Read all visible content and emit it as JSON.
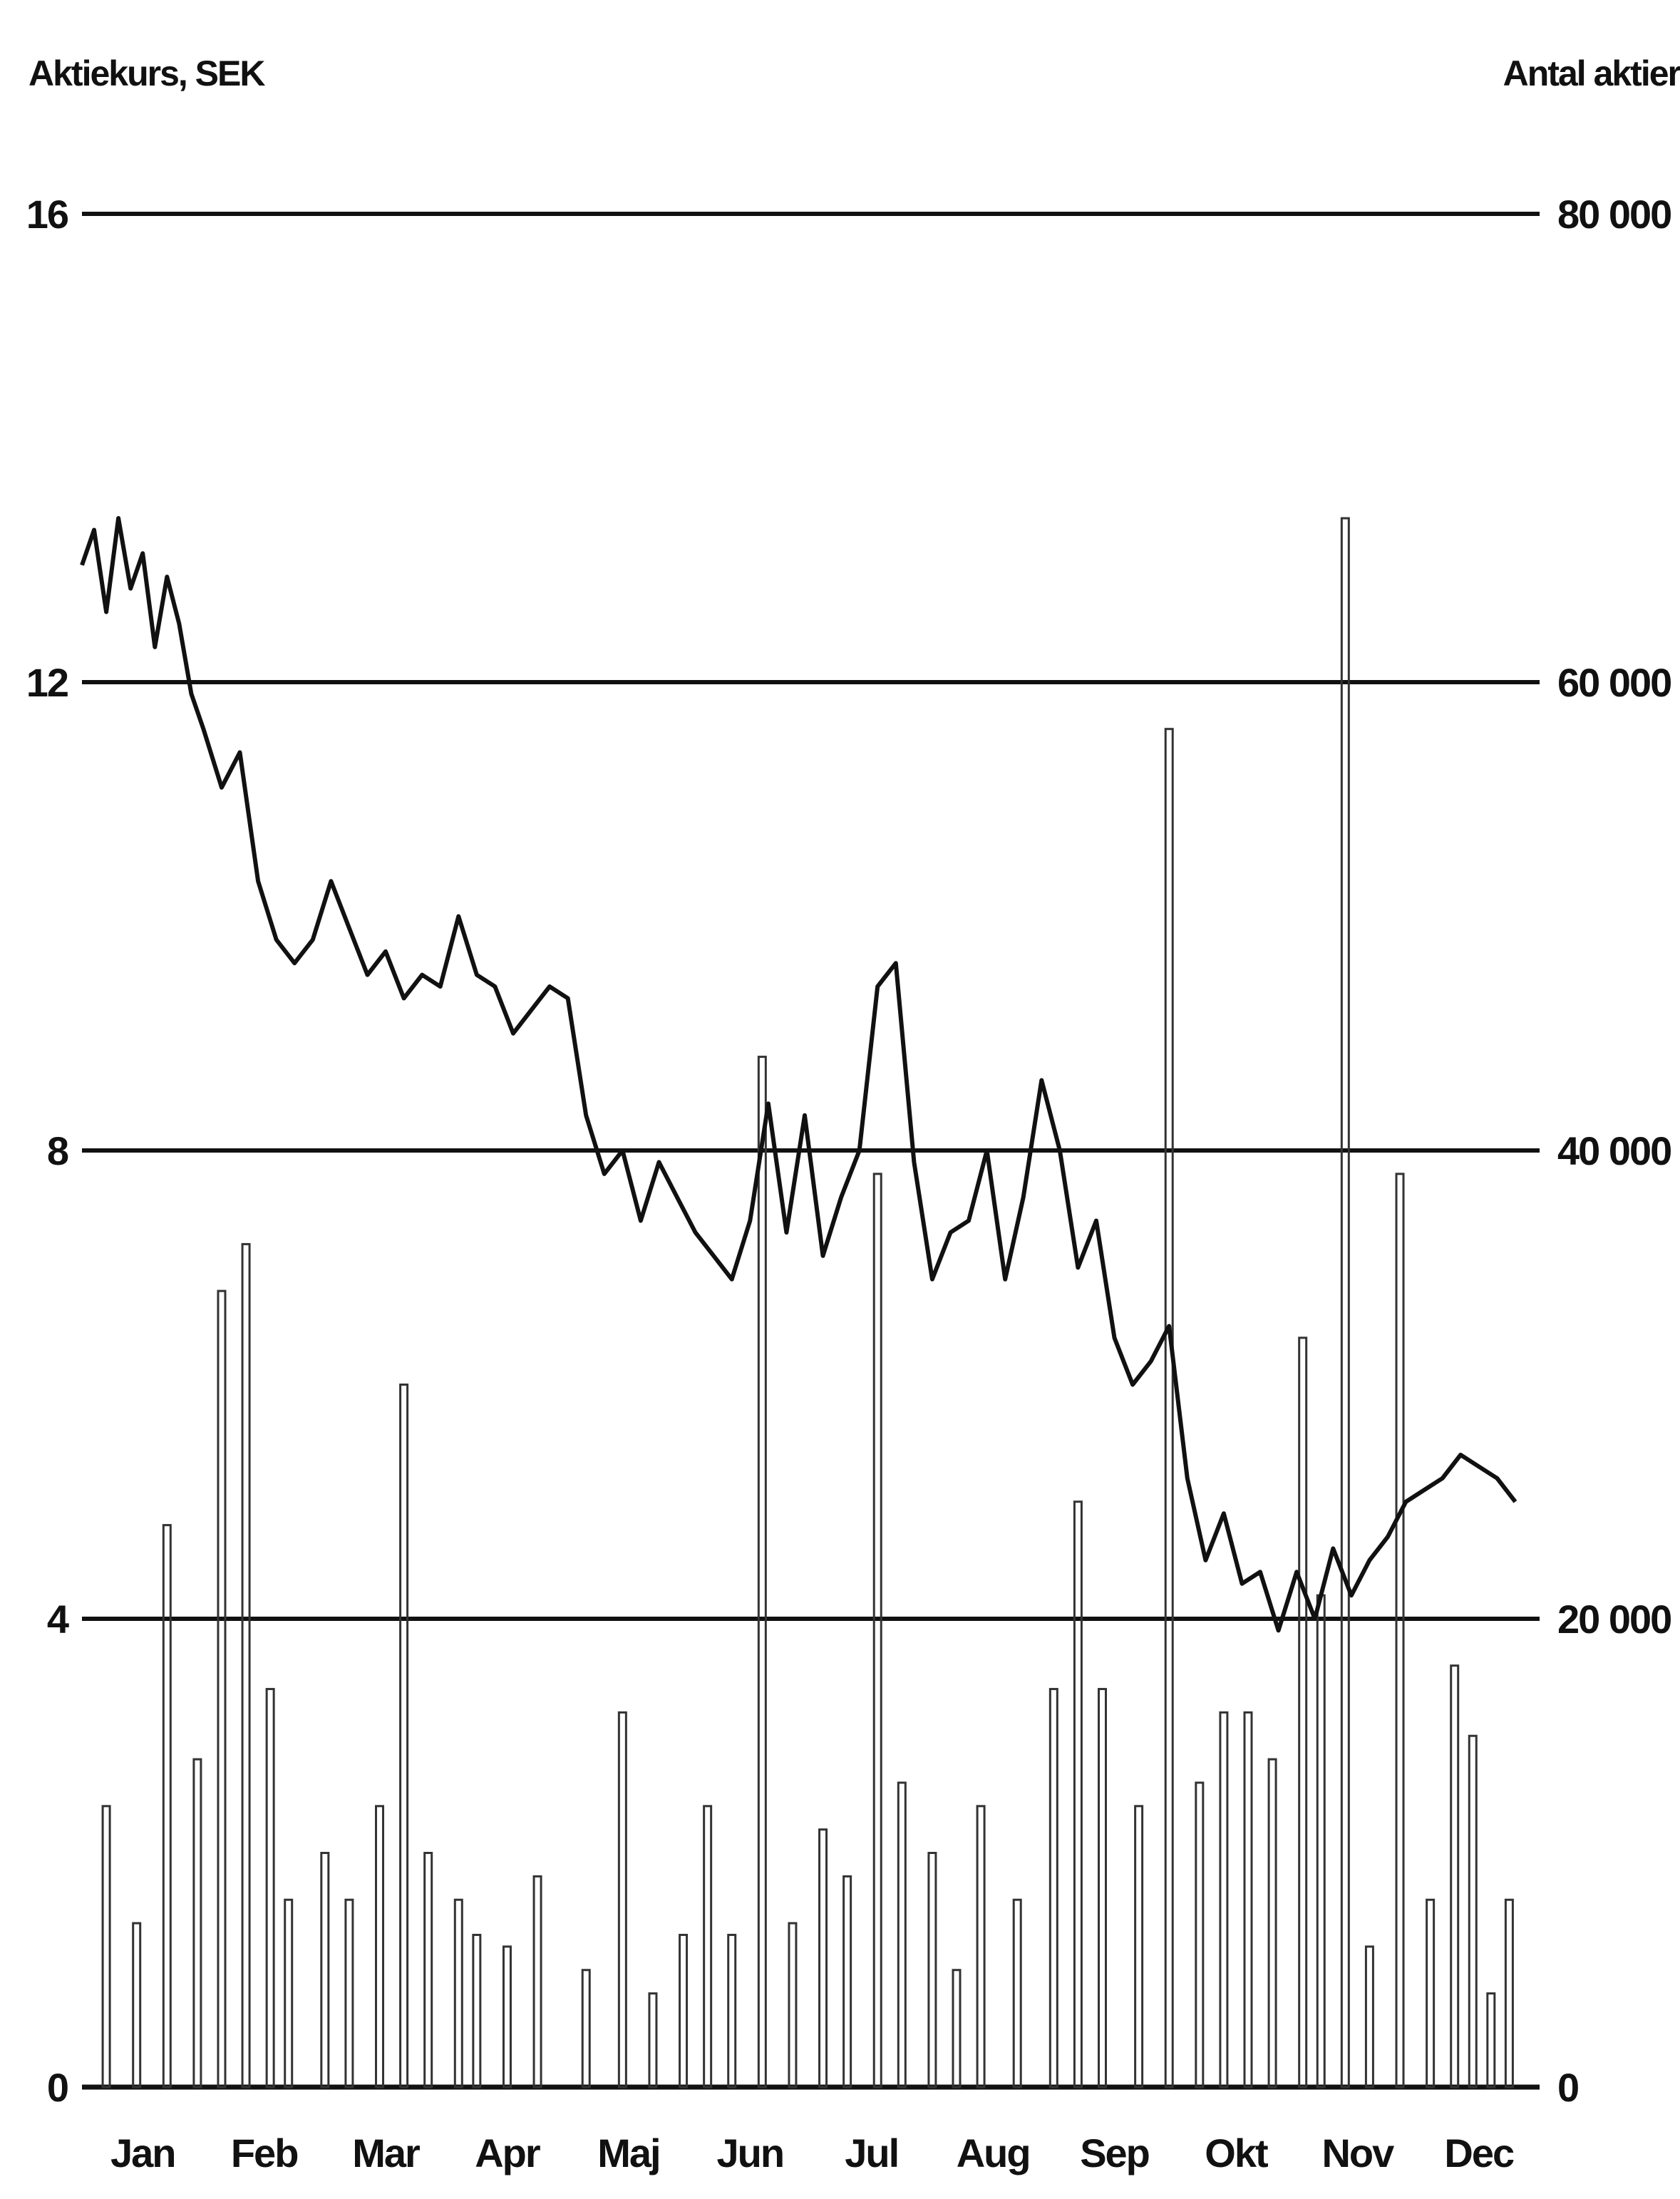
{
  "chart_data": {
    "type": "line",
    "y_left_label": "Aktiekurs, SEK",
    "y_right_label": "Antal aktier",
    "y_left_ticks": [
      "0",
      "4",
      "8",
      "12",
      "16"
    ],
    "y_right_ticks": [
      "0",
      "20 000",
      "40 000",
      "60 000",
      "80 000"
    ],
    "ylim_left": [
      0,
      16
    ],
    "ylim_right": [
      0,
      80000
    ],
    "months": [
      "Jan",
      "Feb",
      "Mar",
      "Apr",
      "Maj",
      "Jun",
      "Jul",
      "Aug",
      "Sep",
      "Okt",
      "Nov",
      "Dec"
    ],
    "grid": true,
    "colors": {
      "price": "#111111",
      "volume": "#333333",
      "grid": "#111111"
    },
    "series": [
      {
        "name": "Aktiekurs, SEK",
        "kind": "line",
        "x": [
          0.0,
          0.1,
          0.2,
          0.3,
          0.4,
          0.5,
          0.6,
          0.7,
          0.8,
          0.9,
          1.0,
          1.15,
          1.3,
          1.45,
          1.6,
          1.75,
          1.9,
          2.05,
          2.2,
          2.35,
          2.5,
          2.65,
          2.8,
          2.95,
          3.1,
          3.25,
          3.4,
          3.55,
          3.7,
          3.85,
          4.0,
          4.15,
          4.3,
          4.45,
          4.6,
          4.75,
          4.9,
          5.05,
          5.2,
          5.35,
          5.5,
          5.65,
          5.8,
          5.95,
          6.1,
          6.25,
          6.4,
          6.55,
          6.7,
          6.85,
          7.0,
          7.15,
          7.3,
          7.45,
          7.6,
          7.75,
          7.9,
          8.05,
          8.2,
          8.35,
          8.5,
          8.65,
          8.8,
          8.95,
          9.1,
          9.25,
          9.4,
          9.55,
          9.7,
          9.85,
          10.0,
          10.15,
          10.3,
          10.45,
          10.6,
          10.75,
          10.9,
          11.05,
          11.2,
          11.35,
          11.5,
          11.65,
          11.8
        ],
        "values": [
          13.0,
          13.3,
          12.6,
          13.4,
          12.8,
          13.1,
          12.3,
          12.9,
          12.5,
          11.9,
          11.6,
          11.1,
          11.4,
          10.3,
          9.8,
          9.6,
          9.8,
          10.3,
          9.9,
          9.5,
          9.7,
          9.3,
          9.5,
          9.4,
          10.0,
          9.5,
          9.4,
          9.0,
          9.2,
          9.4,
          9.3,
          8.3,
          7.8,
          8.0,
          7.4,
          7.9,
          7.6,
          7.3,
          7.1,
          6.9,
          7.4,
          8.4,
          7.3,
          8.3,
          7.1,
          7.6,
          8.0,
          9.4,
          9.6,
          7.9,
          6.9,
          7.3,
          7.4,
          8.0,
          6.9,
          7.6,
          8.6,
          8.0,
          7.0,
          7.4,
          6.4,
          6.0,
          6.2,
          6.5,
          5.2,
          4.5,
          4.9,
          4.3,
          4.4,
          3.9,
          4.4,
          4.0,
          4.6,
          4.2,
          4.5,
          4.7,
          5.0,
          5.1,
          5.2,
          5.4,
          5.3,
          5.2,
          5.0
        ]
      },
      {
        "name": "Antal aktier",
        "kind": "bar",
        "x": [
          0.2,
          0.45,
          0.7,
          0.95,
          1.15,
          1.35,
          1.55,
          1.7,
          2.0,
          2.2,
          2.45,
          2.65,
          2.85,
          3.1,
          3.25,
          3.5,
          3.75,
          4.15,
          4.45,
          4.7,
          4.95,
          5.15,
          5.35,
          5.6,
          5.85,
          6.1,
          6.3,
          6.55,
          6.75,
          7.0,
          7.2,
          7.4,
          7.7,
          8.0,
          8.2,
          8.4,
          8.7,
          8.95,
          9.2,
          9.4,
          9.6,
          9.8,
          10.05,
          10.2,
          10.4,
          10.6,
          10.85,
          11.1,
          11.3,
          11.45,
          11.6,
          11.75
        ],
        "values": [
          12000,
          7000,
          24000,
          14000,
          34000,
          36000,
          17000,
          8000,
          10000,
          8000,
          12000,
          30000,
          10000,
          8000,
          6500,
          6000,
          9000,
          5000,
          16000,
          4000,
          6500,
          12000,
          6500,
          44000,
          7000,
          11000,
          9000,
          39000,
          13000,
          10000,
          5000,
          12000,
          8000,
          17000,
          25000,
          17000,
          12000,
          58000,
          13000,
          16000,
          16000,
          14000,
          32000,
          21000,
          67000,
          6000,
          39000,
          8000,
          18000,
          15000,
          4000,
          8000
        ]
      }
    ]
  }
}
